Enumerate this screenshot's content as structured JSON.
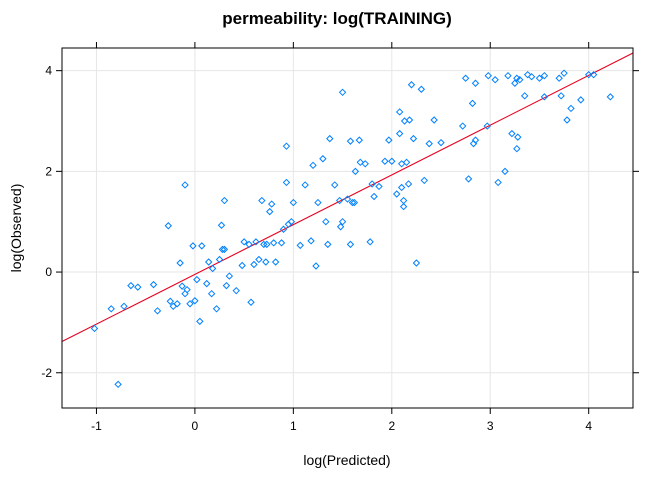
{
  "chart_data": {
    "type": "scatter",
    "title": "permeability: log(TRAINING)",
    "xlabel": "log(Predicted)",
    "ylabel": "log(Observed)",
    "xlim": [
      -1.35,
      4.45
    ],
    "ylim": [
      -2.7,
      4.45
    ],
    "xticks": [
      -1,
      0,
      1,
      2,
      3,
      4
    ],
    "yticks": [
      -2,
      0,
      2,
      4
    ],
    "grid": true,
    "marker": "diamond",
    "colors": {
      "points": "#0080ff",
      "fit_line": "#e8001e",
      "grid": "#e6e6e6"
    },
    "fit_line": {
      "x": [
        -1.35,
        4.45
      ],
      "y": [
        -1.38,
        4.35
      ]
    },
    "points": [
      [
        -1.02,
        -1.12
      ],
      [
        -0.85,
        -0.73
      ],
      [
        -0.78,
        -2.23
      ],
      [
        -0.72,
        -0.68
      ],
      [
        -0.65,
        -0.27
      ],
      [
        -0.58,
        -0.3
      ],
      [
        -0.42,
        -0.25
      ],
      [
        -0.38,
        -0.77
      ],
      [
        -0.27,
        0.92
      ],
      [
        -0.25,
        -0.58
      ],
      [
        -0.22,
        -0.68
      ],
      [
        -0.18,
        -0.63
      ],
      [
        -0.15,
        0.18
      ],
      [
        -0.13,
        -0.28
      ],
      [
        -0.1,
        -0.43
      ],
      [
        -0.1,
        1.73
      ],
      [
        -0.08,
        -0.35
      ],
      [
        -0.05,
        -0.63
      ],
      [
        -0.02,
        0.52
      ],
      [
        0.0,
        -0.57
      ],
      [
        0.02,
        -0.15
      ],
      [
        0.05,
        -0.98
      ],
      [
        0.07,
        0.52
      ],
      [
        0.12,
        -0.23
      ],
      [
        0.14,
        0.2
      ],
      [
        0.17,
        -0.43
      ],
      [
        0.18,
        0.07
      ],
      [
        0.22,
        -0.73
      ],
      [
        0.25,
        0.25
      ],
      [
        0.27,
        0.93
      ],
      [
        0.28,
        0.45
      ],
      [
        0.3,
        1.42
      ],
      [
        0.3,
        0.45
      ],
      [
        0.32,
        -0.27
      ],
      [
        0.35,
        -0.08
      ],
      [
        0.42,
        -0.37
      ],
      [
        0.48,
        0.13
      ],
      [
        0.5,
        0.6
      ],
      [
        0.55,
        0.55
      ],
      [
        0.57,
        -0.6
      ],
      [
        0.6,
        0.15
      ],
      [
        0.62,
        0.6
      ],
      [
        0.65,
        0.25
      ],
      [
        0.68,
        1.42
      ],
      [
        0.7,
        0.55
      ],
      [
        0.72,
        0.2
      ],
      [
        0.73,
        0.55
      ],
      [
        0.76,
        1.2
      ],
      [
        0.78,
        1.35
      ],
      [
        0.8,
        0.58
      ],
      [
        0.82,
        0.2
      ],
      [
        0.88,
        0.58
      ],
      [
        0.9,
        0.85
      ],
      [
        0.93,
        1.78
      ],
      [
        0.93,
        2.5
      ],
      [
        0.95,
        0.95
      ],
      [
        0.98,
        1.0
      ],
      [
        1.0,
        1.38
      ],
      [
        1.07,
        0.53
      ],
      [
        1.12,
        1.73
      ],
      [
        1.18,
        0.62
      ],
      [
        1.2,
        2.12
      ],
      [
        1.23,
        0.12
      ],
      [
        1.25,
        1.38
      ],
      [
        1.3,
        2.25
      ],
      [
        1.33,
        1.0
      ],
      [
        1.35,
        0.55
      ],
      [
        1.37,
        2.65
      ],
      [
        1.42,
        1.73
      ],
      [
        1.47,
        1.42
      ],
      [
        1.48,
        0.9
      ],
      [
        1.5,
        3.57
      ],
      [
        1.5,
        1.0
      ],
      [
        1.55,
        1.45
      ],
      [
        1.58,
        2.6
      ],
      [
        1.58,
        0.55
      ],
      [
        1.6,
        1.38
      ],
      [
        1.62,
        1.38
      ],
      [
        1.63,
        2.0
      ],
      [
        1.67,
        2.62
      ],
      [
        1.68,
        2.18
      ],
      [
        1.73,
        2.15
      ],
      [
        1.78,
        0.6
      ],
      [
        1.8,
        1.75
      ],
      [
        1.82,
        1.5
      ],
      [
        1.87,
        1.7
      ],
      [
        1.93,
        2.2
      ],
      [
        1.97,
        2.62
      ],
      [
        2.0,
        2.2
      ],
      [
        2.05,
        1.55
      ],
      [
        2.08,
        2.75
      ],
      [
        2.08,
        3.18
      ],
      [
        2.1,
        2.15
      ],
      [
        2.1,
        1.68
      ],
      [
        2.12,
        1.3
      ],
      [
        2.12,
        1.42
      ],
      [
        2.13,
        3.0
      ],
      [
        2.15,
        2.18
      ],
      [
        2.17,
        1.75
      ],
      [
        2.18,
        3.02
      ],
      [
        2.2,
        3.72
      ],
      [
        2.22,
        2.65
      ],
      [
        2.25,
        0.18
      ],
      [
        2.3,
        3.63
      ],
      [
        2.33,
        1.82
      ],
      [
        2.38,
        2.55
      ],
      [
        2.43,
        3.02
      ],
      [
        2.5,
        2.57
      ],
      [
        2.72,
        2.9
      ],
      [
        2.75,
        3.85
      ],
      [
        2.78,
        1.85
      ],
      [
        2.82,
        3.35
      ],
      [
        2.83,
        2.55
      ],
      [
        2.85,
        3.75
      ],
      [
        2.85,
        2.62
      ],
      [
        2.97,
        2.9
      ],
      [
        2.98,
        3.9
      ],
      [
        3.05,
        3.82
      ],
      [
        3.08,
        1.78
      ],
      [
        3.15,
        2.0
      ],
      [
        3.18,
        3.9
      ],
      [
        3.22,
        2.75
      ],
      [
        3.25,
        3.75
      ],
      [
        3.27,
        3.85
      ],
      [
        3.27,
        2.45
      ],
      [
        3.28,
        2.68
      ],
      [
        3.3,
        3.82
      ],
      [
        3.35,
        3.5
      ],
      [
        3.38,
        3.92
      ],
      [
        3.42,
        3.88
      ],
      [
        3.5,
        3.85
      ],
      [
        3.55,
        3.48
      ],
      [
        3.55,
        3.9
      ],
      [
        3.7,
        3.85
      ],
      [
        3.72,
        3.5
      ],
      [
        3.75,
        3.95
      ],
      [
        3.78,
        3.02
      ],
      [
        3.82,
        3.25
      ],
      [
        3.92,
        3.42
      ],
      [
        4.0,
        3.92
      ],
      [
        4.05,
        3.92
      ],
      [
        4.22,
        3.48
      ]
    ]
  }
}
